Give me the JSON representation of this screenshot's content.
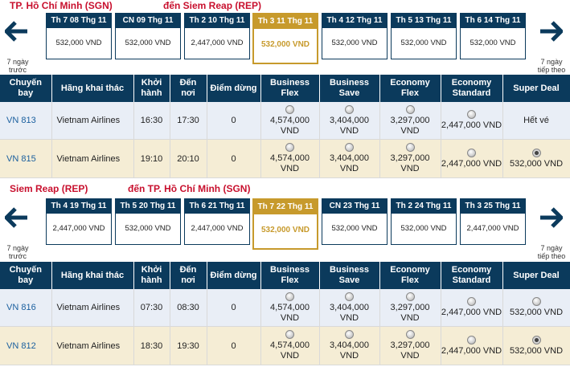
{
  "outbound": {
    "from": "TP. Hồ Chí Minh (SGN)",
    "to": "đến  Siem Reap (REP)",
    "prev_label": "7 ngày trước",
    "next_label": "7 ngày tiếp theo",
    "dates": [
      {
        "day": "Th 7 08 Thg 11",
        "price": "532,000 VND",
        "selected": false
      },
      {
        "day": "CN 09 Thg 11",
        "price": "532,000 VND",
        "selected": false
      },
      {
        "day": "Th 2 10 Thg 11",
        "price": "2,447,000 VND",
        "selected": false
      },
      {
        "day": "Th 3 11 Thg 11",
        "price": "532,000 VND",
        "selected": true
      },
      {
        "day": "Th 4 12 Thg 11",
        "price": "532,000 VND",
        "selected": false
      },
      {
        "day": "Th 5 13 Thg 11",
        "price": "532,000 VND",
        "selected": false
      },
      {
        "day": "Th 6 14 Thg 11",
        "price": "532,000 VND",
        "selected": false
      }
    ],
    "flights": [
      {
        "number": "VN 813",
        "operator": "Vietnam Airlines",
        "depart": "16:30",
        "arrive": "17:30",
        "stops": "0",
        "fares": [
          "4,574,000 VND",
          "3,404,000 VND",
          "3,297,000 VND",
          "2,447,000 VND"
        ],
        "super_deal": "Hết vé",
        "selected_fare": -1
      },
      {
        "number": "VN 815",
        "operator": "Vietnam Airlines",
        "depart": "19:10",
        "arrive": "20:10",
        "stops": "0",
        "fares": [
          "4,574,000 VND",
          "3,404,000 VND",
          "3,297,000 VND",
          "2,447,000 VND",
          "532,000 VND"
        ],
        "super_deal": "",
        "selected_fare": 4
      }
    ]
  },
  "inbound": {
    "from": "Siem Reap (REP)",
    "to": "đến  TP. Hồ Chí Minh (SGN)",
    "prev_label": "7 ngày trước",
    "next_label": "7 ngày tiếp theo",
    "dates": [
      {
        "day": "Th 4 19 Thg 11",
        "price": "2,447,000 VND",
        "selected": false
      },
      {
        "day": "Th 5 20 Thg 11",
        "price": "532,000 VND",
        "selected": false
      },
      {
        "day": "Th 6 21 Thg 11",
        "price": "2,447,000 VND",
        "selected": false
      },
      {
        "day": "Th 7 22 Thg 11",
        "price": "532,000 VND",
        "selected": true
      },
      {
        "day": "CN 23 Thg 11",
        "price": "532,000 VND",
        "selected": false
      },
      {
        "day": "Th 2 24 Thg 11",
        "price": "532,000 VND",
        "selected": false
      },
      {
        "day": "Th 3 25 Thg 11",
        "price": "2,447,000 VND",
        "selected": false
      }
    ],
    "flights": [
      {
        "number": "VN 816",
        "operator": "Vietnam Airlines",
        "depart": "07:30",
        "arrive": "08:30",
        "stops": "0",
        "fares": [
          "4,574,000 VND",
          "3,404,000 VND",
          "3,297,000 VND",
          "2,447,000 VND",
          "532,000 VND"
        ],
        "super_deal": "",
        "selected_fare": -1
      },
      {
        "number": "VN 812",
        "operator": "Vietnam Airlines",
        "depart": "18:30",
        "arrive": "19:30",
        "stops": "0",
        "fares": [
          "4,574,000 VND",
          "3,404,000 VND",
          "3,297,000 VND",
          "2,447,000 VND",
          "532,000 VND"
        ],
        "super_deal": "",
        "selected_fare": 4
      }
    ]
  },
  "headers": {
    "flight": "Chuyến bay",
    "operator": "Hãng khai thác",
    "depart": "Khởi hành",
    "arrive": "Đến nơi",
    "stops": "Điểm dừng",
    "business_flex": "Business Flex",
    "business_save": "Business Save",
    "economy_flex": "Economy Flex",
    "economy_standard": "Economy Standard",
    "super_deal": "Super Deal"
  },
  "icons": {
    "prev": "arrow-left-icon",
    "next": "arrow-right-icon",
    "fare": "radio-icon"
  },
  "colors": {
    "header_bg": "#0b3a5c",
    "selected_date": "#c79a2c",
    "route_title": "#c8102e",
    "row_blue": "#e9eef6",
    "row_beige": "#f5edd5"
  }
}
